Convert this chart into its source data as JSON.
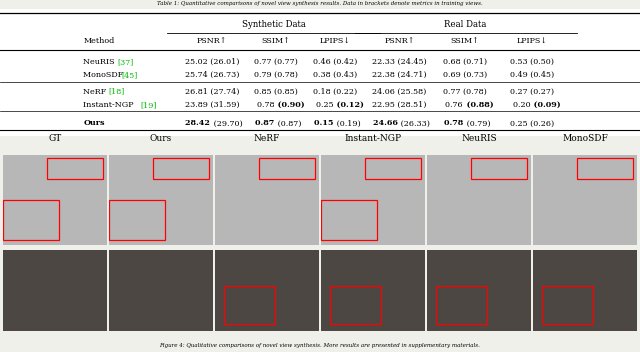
{
  "title_top": "Table 1: Quantitative comparisons of novel view synthesis results. Data in brackets denote metrics in training views.",
  "caption_bottom": "Figure 4: Qualitative comparisons of novel view synthesis. More results are presented in supplementary materials.",
  "header2": [
    "Method",
    "PSNR↑",
    "SSIM↑",
    "LPIPS↓",
    "PSNR↑",
    "SSIM↑",
    "LPIPS↓"
  ],
  "rows": [
    [
      "NeuRIS [37]",
      "25.02 (26.01)",
      "0.77 (0.77)",
      "0.46 (0.42)",
      "22.33 (24.45)",
      "0.68 (0.71)",
      "0.53 (0.50)"
    ],
    [
      "MonoSDF [45]",
      "25.74 (26.73)",
      "0.79 (0.78)",
      "0.38 (0.43)",
      "22.38 (24.71)",
      "0.69 (0.73)",
      "0.49 (0.45)"
    ],
    [
      "NeRF [18]",
      "26.81 (27.74)",
      "0.85 (0.85)",
      "0.18 (0.22)",
      "24.06 (25.58)",
      "0.77 (0.78)",
      "0.27 (0.27)"
    ],
    [
      "Instant-NGP [19]",
      "23.89 (31.59)",
      "0.78 (0.90)",
      "0.25 (0.12)",
      "22.95 (28.51)",
      "0.76 (0.88)",
      "0.20 (0.09)"
    ],
    [
      "Ours",
      "28.42 (29.70)",
      "0.87 (0.87)",
      "0.15 (0.19)",
      "24.66 (26.33)",
      "0.78 (0.79)",
      "0.25 (0.26)"
    ]
  ],
  "green_refs": {
    "0": "[37]",
    "1": "[45]",
    "2": "[18]",
    "3": "[19]"
  },
  "col_labels": [
    "GT",
    "Ours",
    "NeRF",
    "Instant-NGP",
    "NeuRIS",
    "MonoSDF"
  ],
  "bg_color": "#f0f0eb"
}
